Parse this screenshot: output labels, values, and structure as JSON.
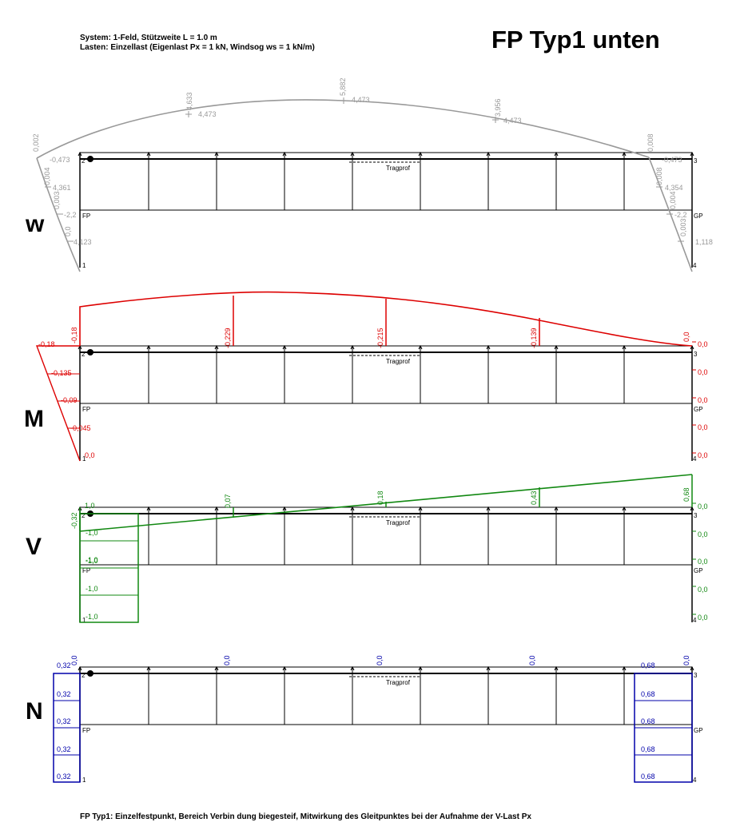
{
  "header": {
    "system_line": "System: 1-Feld, Stützweite L = 1.0 m",
    "loads_line": "Lasten: Einzellast (Eigenlast Px = 1 kN, Windsog ws = 1 kN/m)",
    "title": "FP Typ1 unten"
  },
  "footer": {
    "caption": "FP Typ1: Einzelfestpunkt, Bereich Verbin dung  biegesteif, Mitwirkung des Gleitpunktes bei der Aufnahme der V-Last Px"
  },
  "structure": {
    "node_labels": [
      "1",
      "2",
      "3",
      "4"
    ],
    "support_left": "FP",
    "support_right": "GP",
    "beam_label": "Tragprof"
  },
  "colors": {
    "w": "#999999",
    "M": "#dd0000",
    "V": "#118811",
    "N": "#0000aa",
    "structure": "#000000"
  },
  "panels": [
    {
      "key": "w",
      "label": "w",
      "beam_values": [
        "4,633",
        "4,473",
        "5,882",
        "4,473",
        "3,956",
        "4,473"
      ],
      "beam_end_values": [
        "0,002",
        "0,008"
      ],
      "left_post_values": [
        "-0,473",
        "0,004",
        "4,361",
        "0,003",
        "-2,2",
        "0,0",
        "4,123"
      ],
      "right_post_values": [
        "-0,473",
        "0,008",
        "4,354",
        "0,004",
        "-2,2",
        "0,003",
        "1,118"
      ]
    },
    {
      "key": "M",
      "label": "M",
      "beam_values": [
        "-0,18",
        "-0,229",
        "-0,215",
        "-0,139",
        "0,0"
      ],
      "left_post_values": [
        "-0,18",
        "-0,135",
        "-0,09",
        "-0,045",
        "0,0"
      ],
      "right_post_values": [
        "0,0",
        "0,0",
        "0,0",
        "0,0",
        "0,0"
      ]
    },
    {
      "key": "V",
      "label": "V",
      "beam_values": [
        "-0,32",
        "0,07",
        "0,18",
        "0,43",
        "0,68"
      ],
      "left_post_values": [
        "-1,0",
        "-1,0",
        "-1,0",
        "-1,0",
        "-1,0"
      ],
      "right_post_values": [
        "0,0",
        "0,0",
        "0,0",
        "0,0",
        "0,0"
      ]
    },
    {
      "key": "N",
      "label": "N",
      "beam_values": [
        "0,0",
        "0,0",
        "0,0",
        "0,0",
        "0,0"
      ],
      "left_post_values": [
        "0,32",
        "0,32",
        "0,32",
        "0,32",
        "0,32"
      ],
      "right_post_values": [
        "0,68",
        "0,68",
        "0,68",
        "0,68",
        "0,68"
      ]
    }
  ]
}
